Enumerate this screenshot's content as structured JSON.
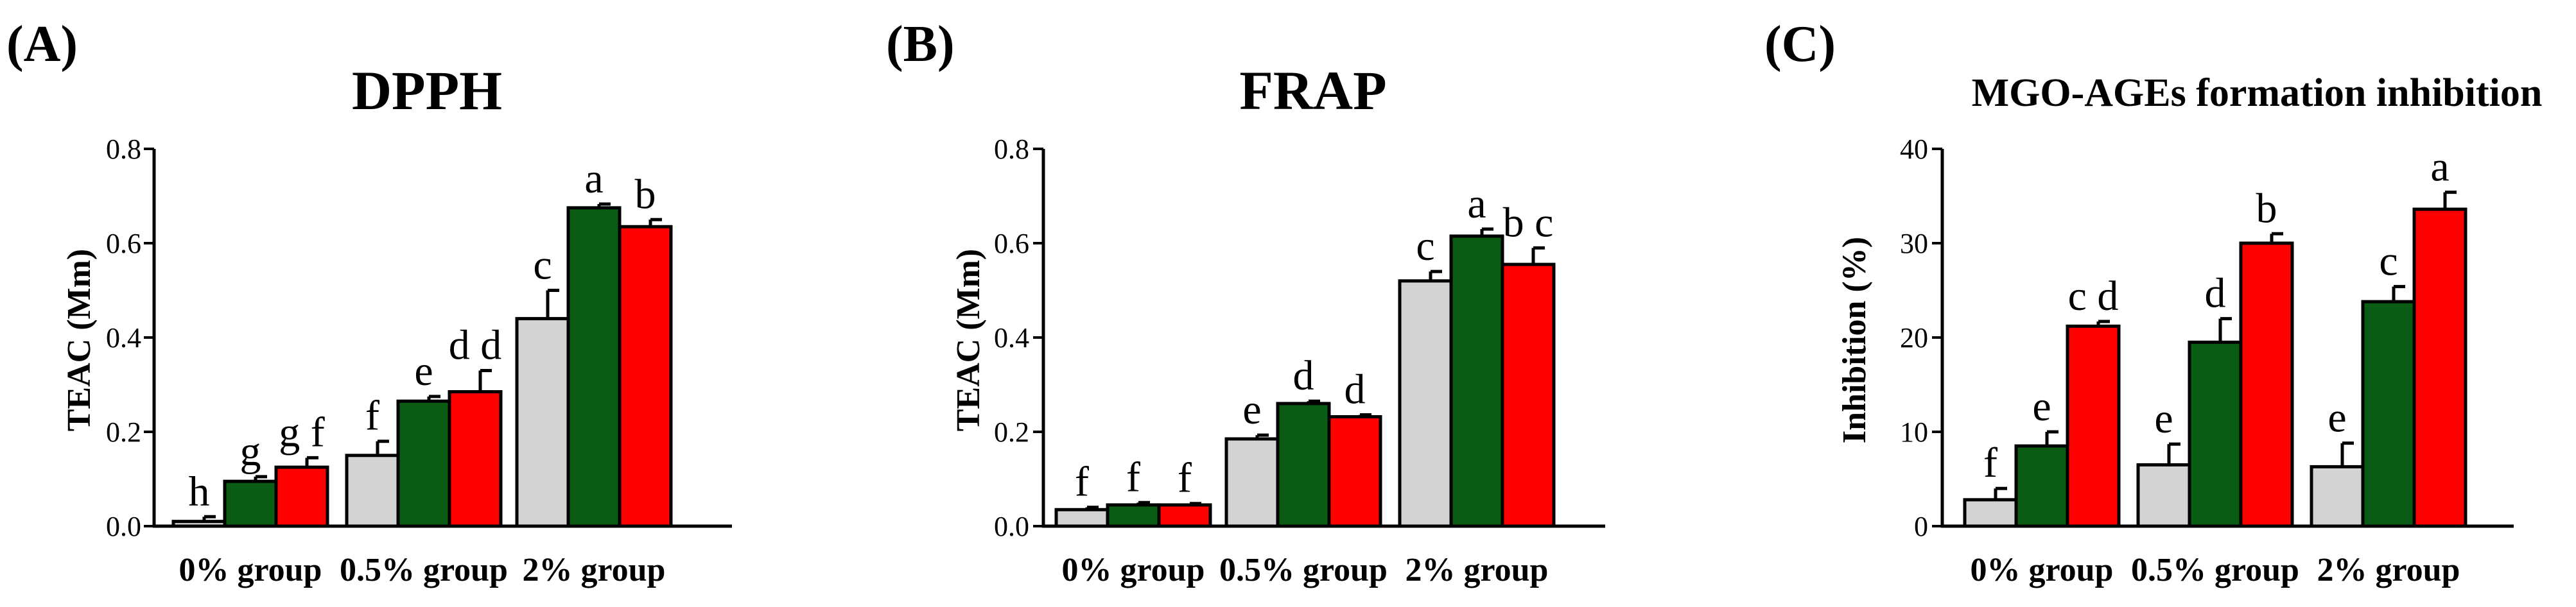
{
  "chart_data": [
    {
      "type": "bar",
      "panel": "(A)",
      "title": "DPPH",
      "ylabel": "TEAC (Mm)",
      "xlabel": "",
      "ylim": [
        0,
        0.8
      ],
      "yticks": [
        "0.0",
        "0.2",
        "0.4",
        "0.6",
        "0.8"
      ],
      "categories": [
        "0% group",
        "0.5% group",
        "2% group"
      ],
      "legend": "none",
      "grid": false,
      "series": [
        {
          "color": "#d3d3d3",
          "values": [
            0.01,
            0.15,
            0.44
          ],
          "errors": [
            0.01,
            0.03,
            0.06
          ],
          "letters": [
            "h",
            "f",
            "c"
          ]
        },
        {
          "color": "#0a5c14",
          "values": [
            0.095,
            0.265,
            0.675
          ],
          "errors": [
            0.01,
            0.01,
            0.008
          ],
          "letters": [
            "g",
            "e",
            "a"
          ]
        },
        {
          "color": "#ff0000",
          "values": [
            0.125,
            0.285,
            0.635
          ],
          "errors": [
            0.02,
            0.045,
            0.015
          ],
          "letters": [
            "g f",
            "d d",
            "b"
          ]
        }
      ]
    },
    {
      "type": "bar",
      "panel": "(B)",
      "title": "FRAP",
      "ylabel": "TEAC (Mm)",
      "xlabel": "",
      "ylim": [
        0,
        0.8
      ],
      "yticks": [
        "0.0",
        "0.2",
        "0.4",
        "0.6",
        "0.8"
      ],
      "categories": [
        "0% group",
        "0.5% group",
        "2% group"
      ],
      "legend": "none",
      "grid": false,
      "series": [
        {
          "color": "#d3d3d3",
          "values": [
            0.035,
            0.185,
            0.52
          ],
          "errors": [
            0.005,
            0.008,
            0.02
          ],
          "letters": [
            "f",
            "e",
            "c"
          ]
        },
        {
          "color": "#0a5c14",
          "values": [
            0.045,
            0.26,
            0.615
          ],
          "errors": [
            0.005,
            0.005,
            0.015
          ],
          "letters": [
            "f",
            "d",
            "a"
          ]
        },
        {
          "color": "#ff0000",
          "values": [
            0.045,
            0.232,
            0.555
          ],
          "errors": [
            0.003,
            0.004,
            0.035
          ],
          "letters": [
            "f",
            "d",
            "b c"
          ]
        }
      ]
    },
    {
      "type": "bar",
      "panel": "(C)",
      "title": "MGO-AGEs formation inhibition",
      "ylabel": "Inhibition (%)",
      "xlabel": "",
      "ylim": [
        0,
        40
      ],
      "yticks": [
        "0",
        "10",
        "20",
        "30",
        "40"
      ],
      "categories": [
        "0% group",
        "0.5% group",
        "2% group"
      ],
      "legend": "none",
      "grid": false,
      "series": [
        {
          "color": "#d3d3d3",
          "values": [
            2.8,
            6.5,
            6.3
          ],
          "errors": [
            1.2,
            2.2,
            2.5
          ],
          "letters": [
            "f",
            "e",
            "e"
          ]
        },
        {
          "color": "#0a5c14",
          "values": [
            8.5,
            19.5,
            23.8
          ],
          "errors": [
            1.5,
            2.5,
            1.6
          ],
          "letters": [
            "e",
            "d",
            "c"
          ]
        },
        {
          "color": "#ff0000",
          "values": [
            21.2,
            30.0,
            33.6
          ],
          "errors": [
            0.5,
            1.0,
            1.8
          ],
          "letters": [
            "c d",
            "b",
            "a"
          ]
        }
      ]
    }
  ]
}
